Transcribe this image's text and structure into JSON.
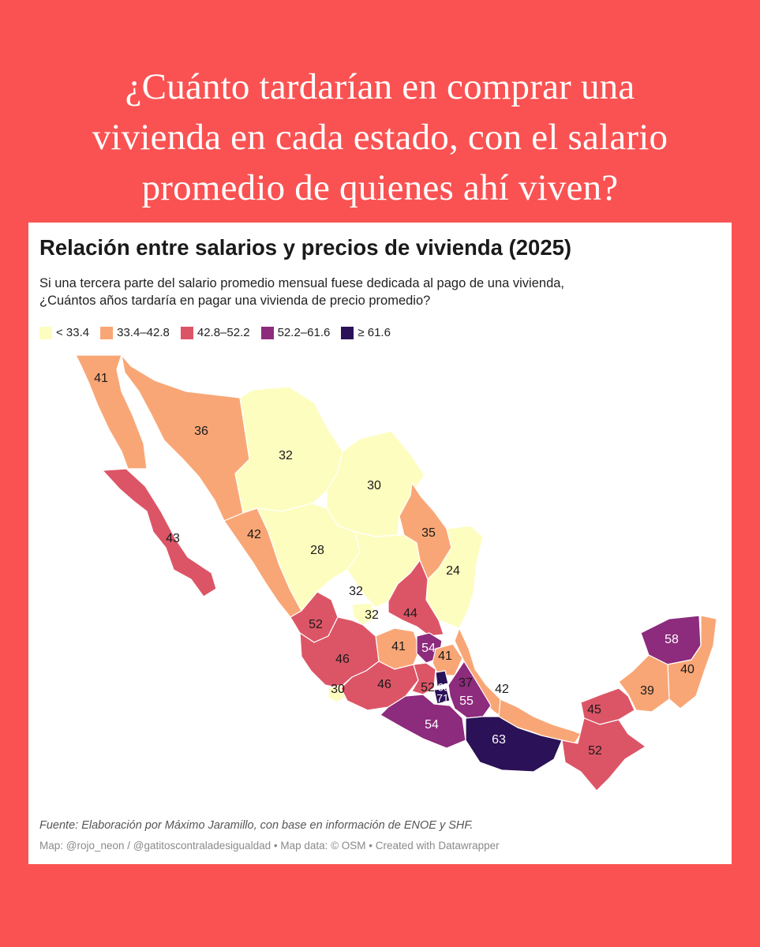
{
  "headline": {
    "line1": "¿Cuánto tardarían en comprar una",
    "line2": "vivienda en cada estado, con el salario",
    "line3": "promedio de quienes ahí viven?"
  },
  "chart": {
    "title": "Relación entre salarios y precios de vivienda (2025)",
    "subtitle_line1": "Si una tercera parte del salario promedio mensual fuese dedicada al pago de una vivienda,",
    "subtitle_line2": "¿Cuántos años tardaría en pagar una vivienda de precio promedio?",
    "source": "Fuente: Elaboración por Máximo Jaramillo, con base en información de ENOE y SHF.",
    "credits": "Map: @rojo_neon / @gatitoscontraladesigualdad • Map data: © OSM  • Created with Datawrapper"
  },
  "legend": [
    {
      "label": "< 33.4",
      "color": "#fdfdc0"
    },
    {
      "label": "33.4–42.8",
      "color": "#f9a676"
    },
    {
      "label": "42.8–52.2",
      "color": "#dc5566"
    },
    {
      "label": "52.2–61.6",
      "color": "#8d2b7d"
    },
    {
      "label": "≥ 61.6",
      "color": "#2b1157"
    }
  ],
  "state_values": [
    {
      "value": "41",
      "color": "#f9a676"
    },
    {
      "value": "36",
      "color": "#f9a676"
    },
    {
      "value": "32",
      "color": "#fdfdc0"
    },
    {
      "value": "30",
      "color": "#fdfdc0"
    },
    {
      "value": "43",
      "color": "#dc5566"
    },
    {
      "value": "42",
      "color": "#f9a676"
    },
    {
      "value": "35",
      "color": "#f9a676"
    },
    {
      "value": "28",
      "color": "#fdfdc0"
    },
    {
      "value": "24",
      "color": "#fdfdc0"
    },
    {
      "value": "32",
      "color": "#fdfdc0"
    },
    {
      "value": "32",
      "color": "#fdfdc0"
    },
    {
      "value": "44",
      "color": "#dc5566"
    },
    {
      "value": "52",
      "color": "#dc5566"
    },
    {
      "value": "41",
      "color": "#f9a676"
    },
    {
      "value": "54",
      "color": "#8d2b7d"
    },
    {
      "value": "41",
      "color": "#f9a676"
    },
    {
      "value": "46",
      "color": "#dc5566"
    },
    {
      "value": "37",
      "color": "#f9a676"
    },
    {
      "value": "30",
      "color": "#fdfdc0"
    },
    {
      "value": "46",
      "color": "#dc5566"
    },
    {
      "value": "52",
      "color": "#dc5566"
    },
    {
      "value": "65",
      "color": "#2b1157"
    },
    {
      "value": "71",
      "color": "#2b1157"
    },
    {
      "value": "55",
      "color": "#8d2b7d"
    },
    {
      "value": "42",
      "color": "#f9a676"
    },
    {
      "value": "58",
      "color": "#8d2b7d"
    },
    {
      "value": "40",
      "color": "#f9a676"
    },
    {
      "value": "39",
      "color": "#f9a676"
    },
    {
      "value": "45",
      "color": "#dc5566"
    },
    {
      "value": "54",
      "color": "#8d2b7d"
    },
    {
      "value": "63",
      "color": "#2b1157"
    },
    {
      "value": "52",
      "color": "#dc5566"
    }
  ]
}
